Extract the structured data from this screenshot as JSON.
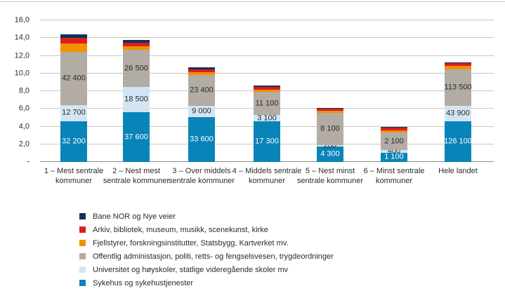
{
  "figure": {
    "background": "#ffffff",
    "top_rule_color": "#c9c6c3"
  },
  "chart_data": {
    "type": "bar",
    "stacked": true,
    "title": "",
    "xlabel": "",
    "ylabel": "",
    "ylim": [
      0,
      16
    ],
    "ytick_step": 2,
    "ytick_labels": [
      "-",
      "2,0",
      "4,0",
      "6,0",
      "8,0",
      "10,0",
      "12,0",
      "14,0",
      "16,0"
    ],
    "grid": true,
    "gridline_color": "#c9c6c3",
    "axis_line_color": "#8e8b88",
    "text_color": "#2b2b2b",
    "legend_position": "bottom-left",
    "categories": [
      "1 – Mest sentrale kommuner",
      "2 – Nest mest sentrale kommuner",
      "3 – Over middels sentrale kommuner",
      "4 – Middels sentrale kommuner",
      "5 – Nest minst sentrale kommuner",
      "6 – Minst sentrale kommuner",
      "Hele landet"
    ],
    "series": [
      {
        "name": "Sykehus og sykehustjenester",
        "color": "#0884b9",
        "label_color": "#ffffff",
        "values": [
          4.6,
          5.6,
          5.1,
          4.6,
          1.75,
          1.05,
          4.6
        ],
        "labels": [
          "32 200",
          "37 600",
          "33 600",
          "17 300",
          "4 300",
          "1 100",
          "126 100"
        ]
      },
      {
        "name": "Universitet og høyskoler, statlige videregående skoler mv",
        "color": "#d3e5f3",
        "label_color": "#2b2b2b",
        "values": [
          1.85,
          2.9,
          1.2,
          0.7,
          0.15,
          0.3,
          1.75
        ],
        "labels": [
          "12 700",
          "18 500",
          "9 000",
          "3 100",
          "200",
          "400",
          "43 900"
        ]
      },
      {
        "name": "Offentlig administasjon, politi, retts- og fengselsvesen, trygdeordninger",
        "color": "#b2aca5",
        "label_color": "#2b2b2b",
        "values": [
          6.0,
          4.15,
          3.55,
          2.6,
          3.65,
          1.95,
          4.1
        ],
        "labels": [
          "42 400",
          "26 500",
          "23 400",
          "11 100",
          "8 100",
          "2 100",
          "113 500"
        ]
      },
      {
        "name": "Fjellstyrer, forskningsinstitutter, Statsbygg, Kartverket mv.",
        "color": "#f09100",
        "label_color": "#2b2b2b",
        "values": [
          0.95,
          0.4,
          0.3,
          0.27,
          0.22,
          0.3,
          0.4
        ],
        "labels": [
          "",
          "",
          "",
          "",
          "",
          "",
          ""
        ]
      },
      {
        "name": "Arkiv, bibliotek, museum, musikk, scenekunst, kirke",
        "color": "#dc1d21",
        "label_color": "#ffffff",
        "values": [
          0.65,
          0.4,
          0.3,
          0.3,
          0.25,
          0.28,
          0.3
        ],
        "labels": [
          "",
          "",
          "",
          "",
          "",
          "",
          ""
        ]
      },
      {
        "name": "Bane NOR og Nye veier",
        "color": "#0e3257",
        "label_color": "#ffffff",
        "values": [
          0.35,
          0.3,
          0.22,
          0.15,
          0.05,
          0.07,
          0.12
        ],
        "labels": [
          "",
          "",
          "",
          "",
          "",
          "",
          ""
        ]
      }
    ]
  }
}
